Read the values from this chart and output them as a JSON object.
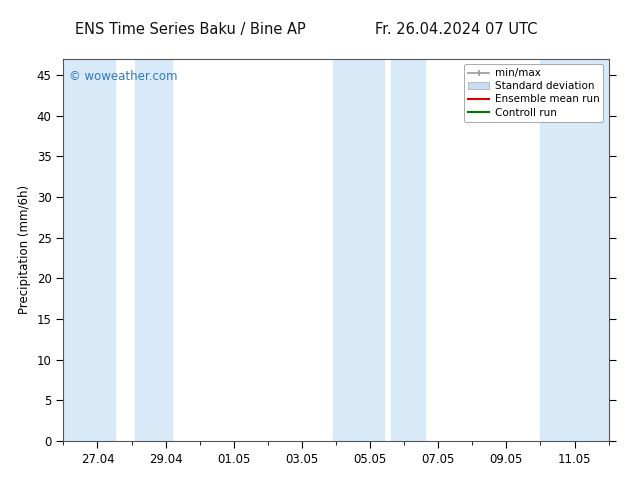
{
  "title_left": "ENS Time Series Baku / Bine AP",
  "title_right": "Fr. 26.04.2024 07 UTC",
  "ylabel": "Precipitation (mm/6h)",
  "background_color": "#ffffff",
  "plot_bg_color": "#ffffff",
  "ylim": [
    0,
    47
  ],
  "yticks": [
    0,
    5,
    10,
    15,
    20,
    25,
    30,
    35,
    40,
    45
  ],
  "watermark": "© woweather.com",
  "watermark_color": "#3377bb",
  "legend_labels": [
    "min/max",
    "Standard deviation",
    "Ensemble mean run",
    "Controll run"
  ],
  "legend_line_colors": [
    "#aaaaaa",
    "#c8ddf0",
    "#dd0000",
    "#007700"
  ],
  "shaded_color": "#d8eaf8",
  "minmax_color": "#999999",
  "stddev_color": "#c8ddf0",
  "x_tick_labels": [
    "27.04",
    "29.04",
    "01.05",
    "03.05",
    "05.05",
    "07.05",
    "09.05",
    "11.05"
  ],
  "xlim": [
    0,
    16
  ],
  "shaded_regions": [
    [
      0.0,
      1.5
    ],
    [
      2.1,
      3.2
    ],
    [
      7.9,
      9.4
    ],
    [
      9.6,
      10.6
    ],
    [
      14.0,
      16.0
    ]
  ]
}
